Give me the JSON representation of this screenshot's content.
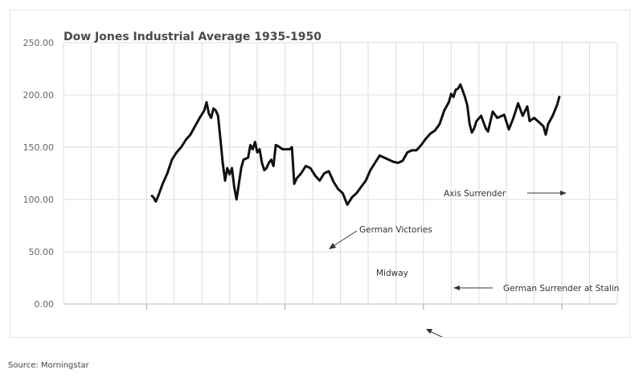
{
  "chart_data": {
    "type": "line",
    "title": "Dow Jones Industrial Average 1935-1950",
    "xlabel": "",
    "ylabel": "",
    "x_range": [
      "1932-01",
      "1952-01"
    ],
    "ylim": [
      0,
      250
    ],
    "y_ticks": [
      "0.00",
      "50.00",
      "100.00",
      "150.00",
      "200.00",
      "250.00"
    ],
    "grid": true,
    "series": [
      {
        "values": [
          {
            "x": "1935-03",
            "y": 104
          },
          {
            "x": "1935-04",
            "y": 102
          },
          {
            "x": "1935-05",
            "y": 98
          },
          {
            "x": "1935-06",
            "y": 103
          },
          {
            "x": "1935-08",
            "y": 115
          },
          {
            "x": "1935-10",
            "y": 125
          },
          {
            "x": "1935-12",
            "y": 138
          },
          {
            "x": "1936-02",
            "y": 145
          },
          {
            "x": "1936-04",
            "y": 150
          },
          {
            "x": "1936-06",
            "y": 157
          },
          {
            "x": "1936-08",
            "y": 162
          },
          {
            "x": "1936-10",
            "y": 170
          },
          {
            "x": "1936-12",
            "y": 178
          },
          {
            "x": "1937-02",
            "y": 185
          },
          {
            "x": "1937-03",
            "y": 193
          },
          {
            "x": "1937-04",
            "y": 182
          },
          {
            "x": "1937-05",
            "y": 178
          },
          {
            "x": "1937-06",
            "y": 187
          },
          {
            "x": "1937-07",
            "y": 185
          },
          {
            "x": "1937-08",
            "y": 180
          },
          {
            "x": "1937-09",
            "y": 158
          },
          {
            "x": "1937-10",
            "y": 135
          },
          {
            "x": "1937-11",
            "y": 118
          },
          {
            "x": "1937-12",
            "y": 130
          },
          {
            "x": "1938-01",
            "y": 124
          },
          {
            "x": "1938-02",
            "y": 130
          },
          {
            "x": "1938-03",
            "y": 112
          },
          {
            "x": "1938-04",
            "y": 100
          },
          {
            "x": "1938-05",
            "y": 115
          },
          {
            "x": "1938-06",
            "y": 130
          },
          {
            "x": "1938-07",
            "y": 138
          },
          {
            "x": "1938-09",
            "y": 140
          },
          {
            "x": "1938-10",
            "y": 152
          },
          {
            "x": "1938-11",
            "y": 148
          },
          {
            "x": "1938-12",
            "y": 155
          },
          {
            "x": "1939-01",
            "y": 145
          },
          {
            "x": "1939-02",
            "y": 148
          },
          {
            "x": "1939-03",
            "y": 135
          },
          {
            "x": "1939-04",
            "y": 128
          },
          {
            "x": "1939-05",
            "y": 130
          },
          {
            "x": "1939-06",
            "y": 135
          },
          {
            "x": "1939-07",
            "y": 138
          },
          {
            "x": "1939-08",
            "y": 132
          },
          {
            "x": "1939-09",
            "y": 152
          },
          {
            "x": "1939-10",
            "y": 151
          },
          {
            "x": "1939-12",
            "y": 148
          },
          {
            "x": "1940-03",
            "y": 148
          },
          {
            "x": "1940-04",
            "y": 150
          },
          {
            "x": "1940-05",
            "y": 115
          },
          {
            "x": "1940-06",
            "y": 120
          },
          {
            "x": "1940-08",
            "y": 125
          },
          {
            "x": "1940-10",
            "y": 132
          },
          {
            "x": "1940-12",
            "y": 130
          },
          {
            "x": "1941-02",
            "y": 123
          },
          {
            "x": "1941-04",
            "y": 118
          },
          {
            "x": "1941-06",
            "y": 125
          },
          {
            "x": "1941-08",
            "y": 127
          },
          {
            "x": "1941-10",
            "y": 117
          },
          {
            "x": "1941-12",
            "y": 110
          },
          {
            "x": "1942-02",
            "y": 106
          },
          {
            "x": "1942-04",
            "y": 95
          },
          {
            "x": "1942-06",
            "y": 102
          },
          {
            "x": "1942-08",
            "y": 106
          },
          {
            "x": "1942-10",
            "y": 112
          },
          {
            "x": "1942-12",
            "y": 118
          },
          {
            "x": "1943-02",
            "y": 128
          },
          {
            "x": "1943-04",
            "y": 135
          },
          {
            "x": "1943-06",
            "y": 142
          },
          {
            "x": "1943-08",
            "y": 140
          },
          {
            "x": "1943-10",
            "y": 138
          },
          {
            "x": "1943-12",
            "y": 136
          },
          {
            "x": "1944-02",
            "y": 135
          },
          {
            "x": "1944-04",
            "y": 137
          },
          {
            "x": "1944-06",
            "y": 145
          },
          {
            "x": "1944-08",
            "y": 147
          },
          {
            "x": "1944-10",
            "y": 147
          },
          {
            "x": "1944-12",
            "y": 152
          },
          {
            "x": "1945-02",
            "y": 158
          },
          {
            "x": "1945-04",
            "y": 163
          },
          {
            "x": "1945-06",
            "y": 166
          },
          {
            "x": "1945-08",
            "y": 172
          },
          {
            "x": "1945-10",
            "y": 185
          },
          {
            "x": "1945-12",
            "y": 193
          },
          {
            "x": "1946-01",
            "y": 201
          },
          {
            "x": "1946-02",
            "y": 198
          },
          {
            "x": "1946-03",
            "y": 205
          },
          {
            "x": "1946-04",
            "y": 206
          },
          {
            "x": "1946-05",
            "y": 210
          },
          {
            "x": "1946-06",
            "y": 204
          },
          {
            "x": "1946-07",
            "y": 198
          },
          {
            "x": "1946-08",
            "y": 190
          },
          {
            "x": "1946-09",
            "y": 172
          },
          {
            "x": "1946-10",
            "y": 164
          },
          {
            "x": "1946-11",
            "y": 168
          },
          {
            "x": "1946-12",
            "y": 175
          },
          {
            "x": "1947-02",
            "y": 180
          },
          {
            "x": "1947-04",
            "y": 168
          },
          {
            "x": "1947-05",
            "y": 165
          },
          {
            "x": "1947-07",
            "y": 184
          },
          {
            "x": "1947-09",
            "y": 178
          },
          {
            "x": "1947-11",
            "y": 180
          },
          {
            "x": "1947-12",
            "y": 181
          },
          {
            "x": "1948-02",
            "y": 167
          },
          {
            "x": "1948-04",
            "y": 178
          },
          {
            "x": "1948-06",
            "y": 192
          },
          {
            "x": "1948-08",
            "y": 180
          },
          {
            "x": "1948-10",
            "y": 189
          },
          {
            "x": "1948-11",
            "y": 175
          },
          {
            "x": "1949-01",
            "y": 178
          },
          {
            "x": "1949-03",
            "y": 174
          },
          {
            "x": "1949-05",
            "y": 170
          },
          {
            "x": "1949-06",
            "y": 162
          },
          {
            "x": "1949-07",
            "y": 172
          },
          {
            "x": "1949-09",
            "y": 180
          },
          {
            "x": "1949-11",
            "y": 191
          },
          {
            "x": "1949-12",
            "y": 199
          }
        ]
      }
    ],
    "annotations": [
      {
        "text": "Axis Surrender",
        "arrow": "right"
      },
      {
        "text": "German Victories",
        "arrow": "down-left"
      },
      {
        "text": "Midway",
        "arrow": "up-left"
      },
      {
        "text": "German Surrender at Stalin",
        "arrow": "left"
      }
    ]
  },
  "source": "Source: Morningstar",
  "colors": {
    "line": "#111111",
    "grid": "#dcdcdc",
    "axis": "#bfbfbf",
    "text": "#444444"
  }
}
